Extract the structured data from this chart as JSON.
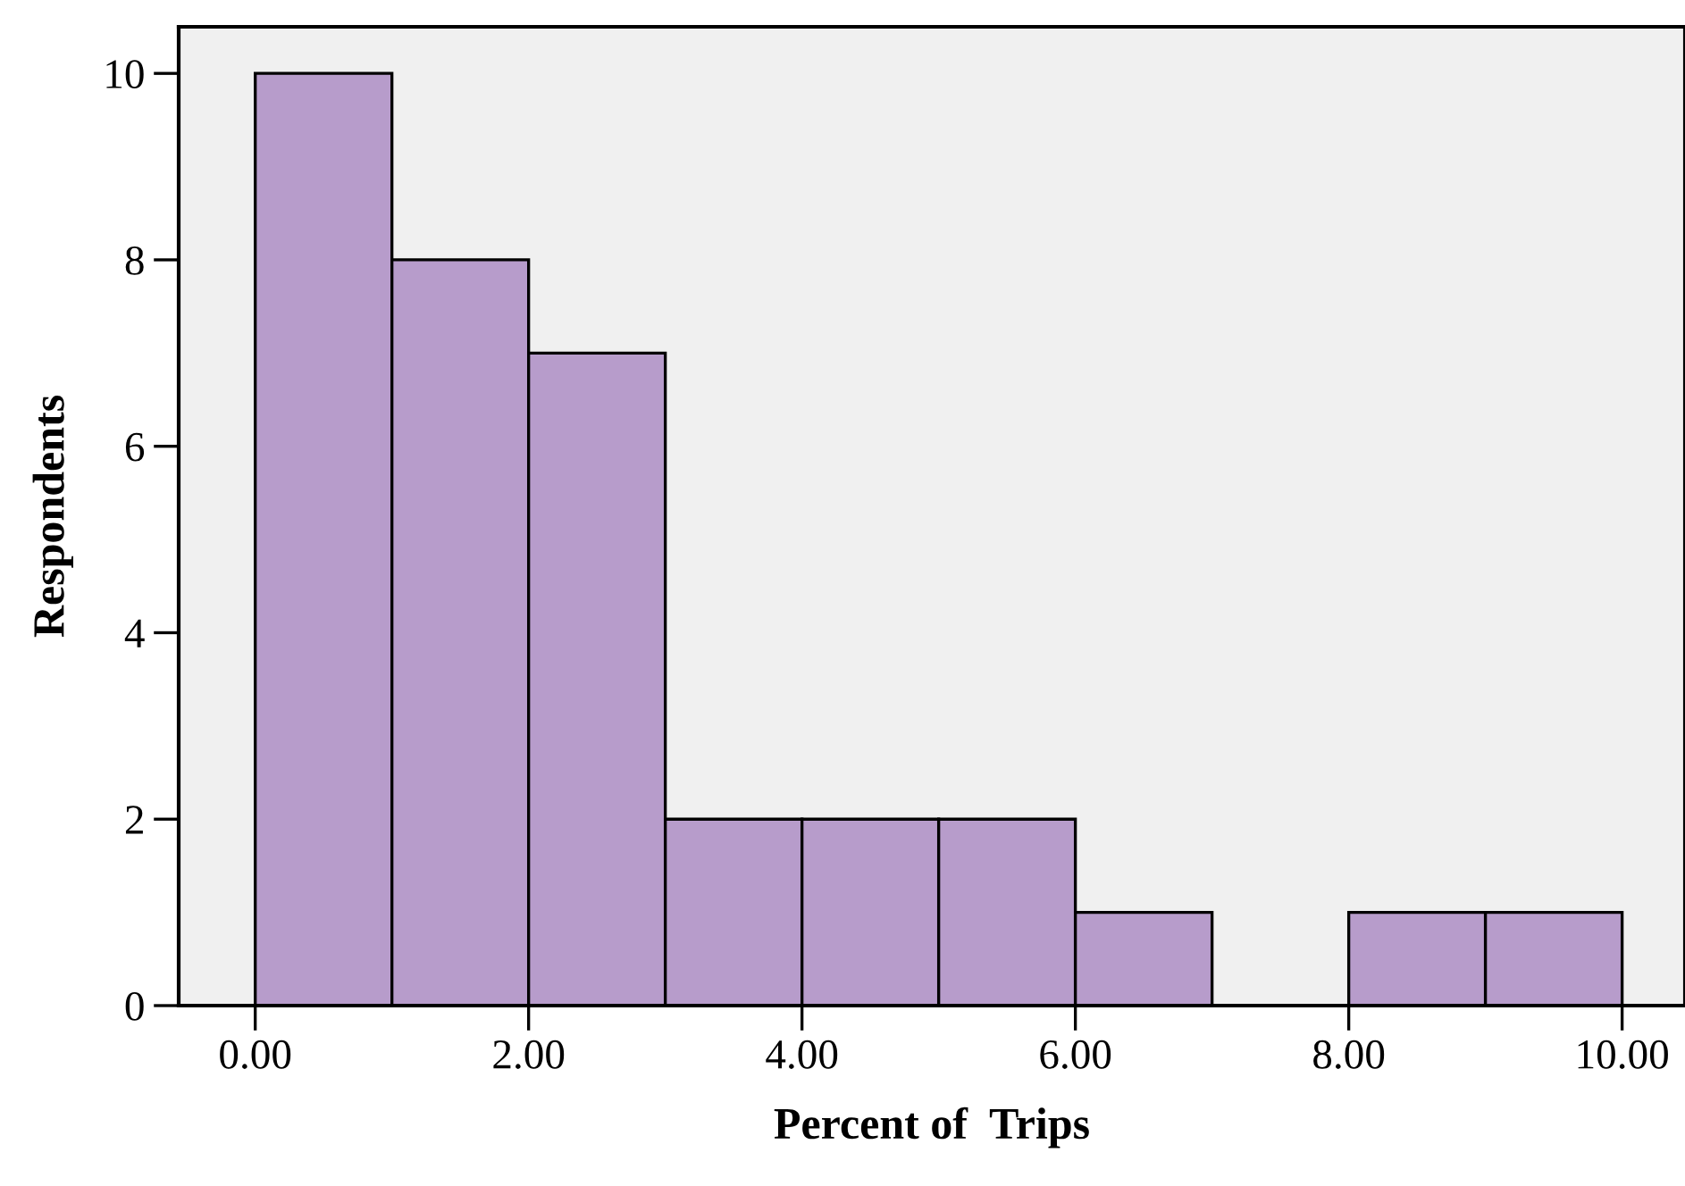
{
  "chart_data": {
    "type": "histogram",
    "xlabel": "Percent of  Trips",
    "ylabel": "Respondents",
    "bins": [
      0,
      1,
      2,
      3,
      4,
      5,
      6,
      7,
      8,
      9,
      10
    ],
    "values": [
      10,
      8,
      7,
      2,
      2,
      2,
      1,
      0,
      1,
      1
    ],
    "color": "#b79ccb",
    "xlim": [
      -0.56,
      10.46
    ],
    "ylim": [
      0,
      10.5
    ],
    "xticks": [
      {
        "value": 0,
        "label": "0.00"
      },
      {
        "value": 2,
        "label": "2.00"
      },
      {
        "value": 4,
        "label": "4.00"
      },
      {
        "value": 6,
        "label": "6.00"
      },
      {
        "value": 8,
        "label": "8.00"
      },
      {
        "value": 10,
        "label": "10.00"
      }
    ],
    "yticks": [
      0,
      2,
      4,
      6,
      8,
      10
    ],
    "grid": false
  }
}
